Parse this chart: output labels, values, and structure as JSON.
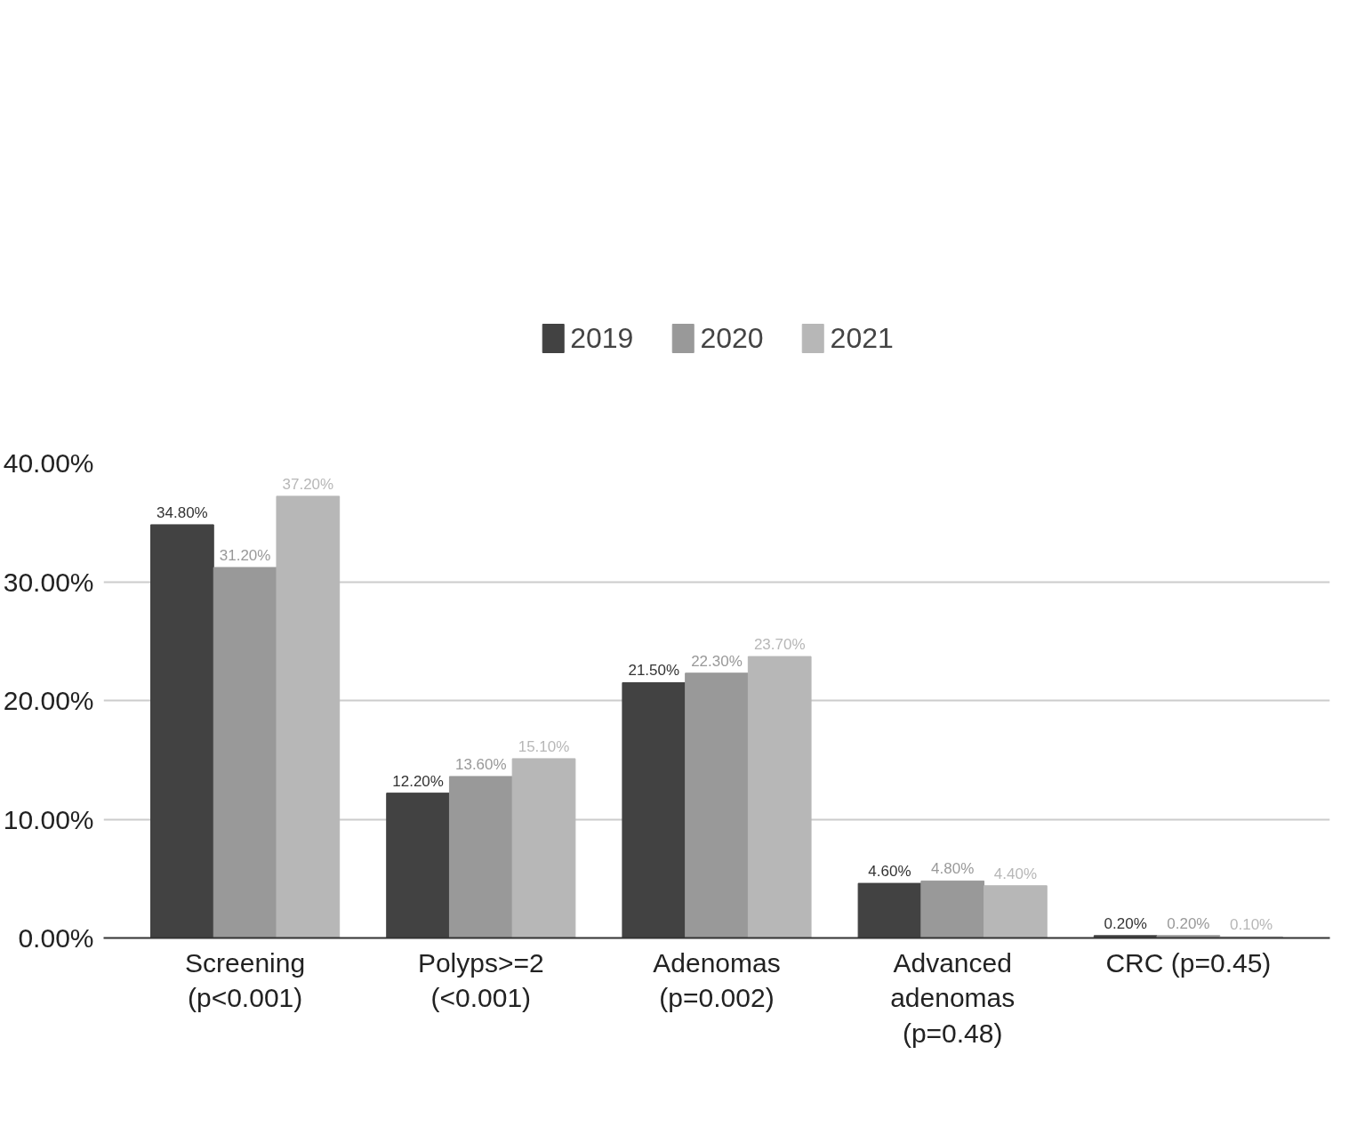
{
  "chart_data": {
    "type": "bar",
    "categories": [
      "Screening\n(p<0.001)",
      "Polyps>=2\n(<0.001)",
      "Adenomas\n(p=0.002)",
      "Advanced\nadenomas\n(p=0.48)",
      "CRC (p=0.45)"
    ],
    "series": [
      {
        "name": "2019",
        "color": "#424242",
        "values": [
          34.8,
          12.2,
          21.5,
          4.6,
          0.2
        ],
        "value_labels": [
          "34.80%",
          "12.20%",
          "21.50%",
          "4.60%",
          "0.20%"
        ]
      },
      {
        "name": "2020",
        "color": "#999999",
        "values": [
          31.2,
          13.6,
          22.3,
          4.8,
          0.2
        ],
        "value_labels": [
          "31.20%",
          "13.60%",
          "22.30%",
          "4.80%",
          "0.20%"
        ]
      },
      {
        "name": "2021",
        "color": "#b7b7b7",
        "values": [
          37.2,
          15.1,
          23.7,
          4.4,
          0.1
        ],
        "value_labels": [
          "37.20%",
          "15.10%",
          "23.70%",
          "4.40%",
          "0.10%"
        ]
      }
    ],
    "ylim": [
      0,
      40
    ],
    "yticks": [
      {
        "value": 0,
        "label": "0.00%"
      },
      {
        "value": 10,
        "label": "10.00%"
      },
      {
        "value": 20,
        "label": "20.00%"
      },
      {
        "value": 30,
        "label": "30.00%"
      },
      {
        "value": 40,
        "label": "40.00%"
      }
    ],
    "grid": "y",
    "legend": "top"
  }
}
